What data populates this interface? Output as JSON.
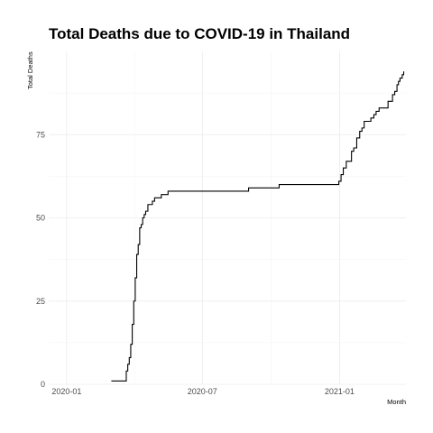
{
  "chart_data": {
    "type": "line",
    "title": "Total Deaths due to COVID-19 in Thailand",
    "xlabel": "Month",
    "ylabel": "Total Deaths",
    "x_axis_type": "date",
    "xlim": [
      "2019-12-08",
      "2021-03-31"
    ],
    "ylim": [
      0,
      100
    ],
    "x_ticks": [
      "2020-01-01",
      "2020-07-01",
      "2021-01-01"
    ],
    "x_tick_labels": [
      "2020-01",
      "2020-07",
      "2021-01"
    ],
    "y_ticks": [
      0,
      25,
      50,
      75
    ],
    "y_tick_labels": [
      "0",
      "25",
      "50",
      "75"
    ],
    "grid": true,
    "legend": "none",
    "line_color": "#000000",
    "series": [
      {
        "step": true,
        "x": [
          "2020-03-01",
          "2020-03-20",
          "2020-03-21",
          "2020-03-23",
          "2020-03-25",
          "2020-03-27",
          "2020-03-29",
          "2020-03-31",
          "2020-04-02",
          "2020-04-04",
          "2020-04-06",
          "2020-04-08",
          "2020-04-10",
          "2020-04-12",
          "2020-04-14",
          "2020-04-16",
          "2020-04-19",
          "2020-04-22",
          "2020-04-25",
          "2020-04-28",
          "2020-05-01",
          "2020-05-07",
          "2020-05-12",
          "2020-05-16",
          "2020-05-25",
          "2020-05-30",
          "2020-09-01",
          "2020-10-12",
          "2020-12-31",
          "2021-01-03",
          "2021-01-06",
          "2021-01-10",
          "2021-01-17",
          "2021-01-20",
          "2021-01-24",
          "2021-01-28",
          "2021-01-31",
          "2021-02-03",
          "2021-02-07",
          "2021-02-12",
          "2021-02-16",
          "2021-02-19",
          "2021-02-23",
          "2021-03-02",
          "2021-03-07",
          "2021-03-13",
          "2021-03-16",
          "2021-03-19",
          "2021-03-21",
          "2021-03-23",
          "2021-03-26",
          "2021-03-28"
        ],
        "y": [
          1,
          1,
          4,
          6,
          8,
          12,
          18,
          25,
          32,
          39,
          42,
          47,
          48,
          50,
          51,
          52,
          54,
          54,
          55,
          56,
          56,
          57,
          57,
          58,
          58,
          58,
          59,
          60,
          61,
          63,
          65,
          67,
          70,
          71,
          74,
          76,
          77,
          79,
          79,
          80,
          81,
          82,
          83,
          83,
          85,
          87,
          88,
          90,
          91,
          92,
          93,
          94
        ]
      }
    ]
  }
}
